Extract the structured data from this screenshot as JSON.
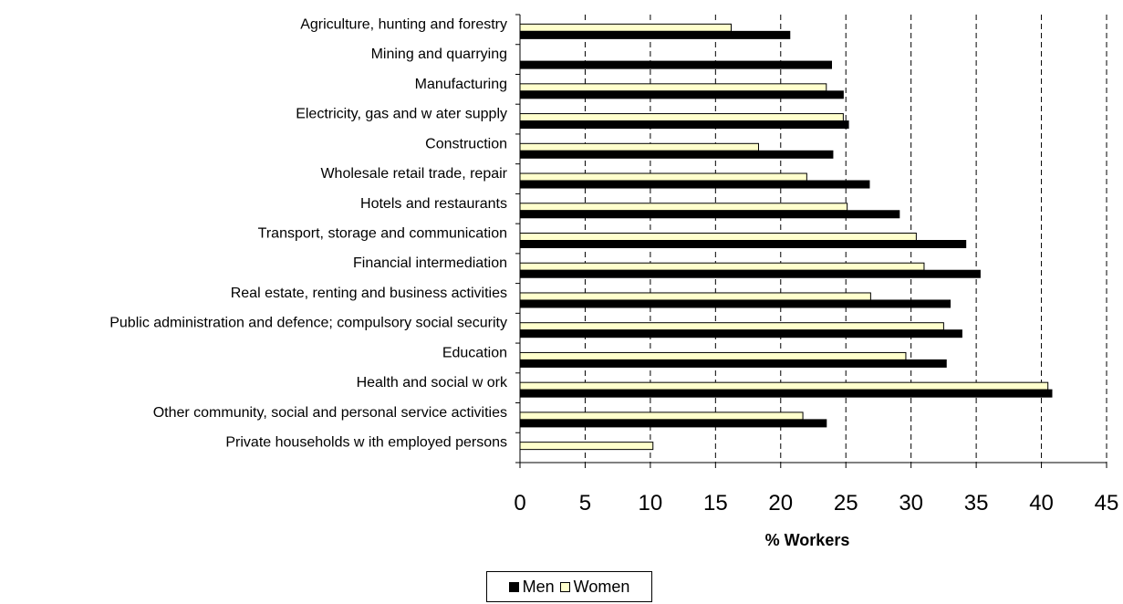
{
  "chart_data": {
    "type": "bar",
    "orientation": "horizontal",
    "categories": [
      "Agriculture, hunting and forestry",
      "Mining and quarrying",
      "Manufacturing",
      "Electricity, gas and w ater supply",
      "Construction",
      "Wholesale retail trade, repair",
      "Hotels and restaurants",
      "Transport, storage and communication",
      "Financial intermediation",
      "Real estate, renting and business activities",
      "Public administration and defence; compulsory social security",
      "Education",
      "Health and social w ork",
      "Other community, social and personal service activities",
      "Private households w ith employed persons"
    ],
    "series": [
      {
        "name": "Men",
        "color": "#000000",
        "values": [
          20.7,
          23.9,
          24.8,
          25.2,
          24.0,
          26.8,
          29.1,
          34.2,
          35.3,
          33.0,
          33.9,
          32.7,
          40.8,
          23.5,
          null
        ]
      },
      {
        "name": "Women",
        "color": "#FFFFCC",
        "values": [
          16.2,
          null,
          23.5,
          24.8,
          18.3,
          22.0,
          25.1,
          30.4,
          31.0,
          26.9,
          32.5,
          29.6,
          40.5,
          21.7,
          10.2
        ]
      }
    ],
    "xlabel": "% Workers",
    "xlim": [
      0,
      45
    ],
    "xticks": [
      0,
      5,
      10,
      15,
      20,
      25,
      30,
      35,
      40,
      45
    ],
    "grid": "vertical dashed",
    "legend": "bottom-center"
  }
}
